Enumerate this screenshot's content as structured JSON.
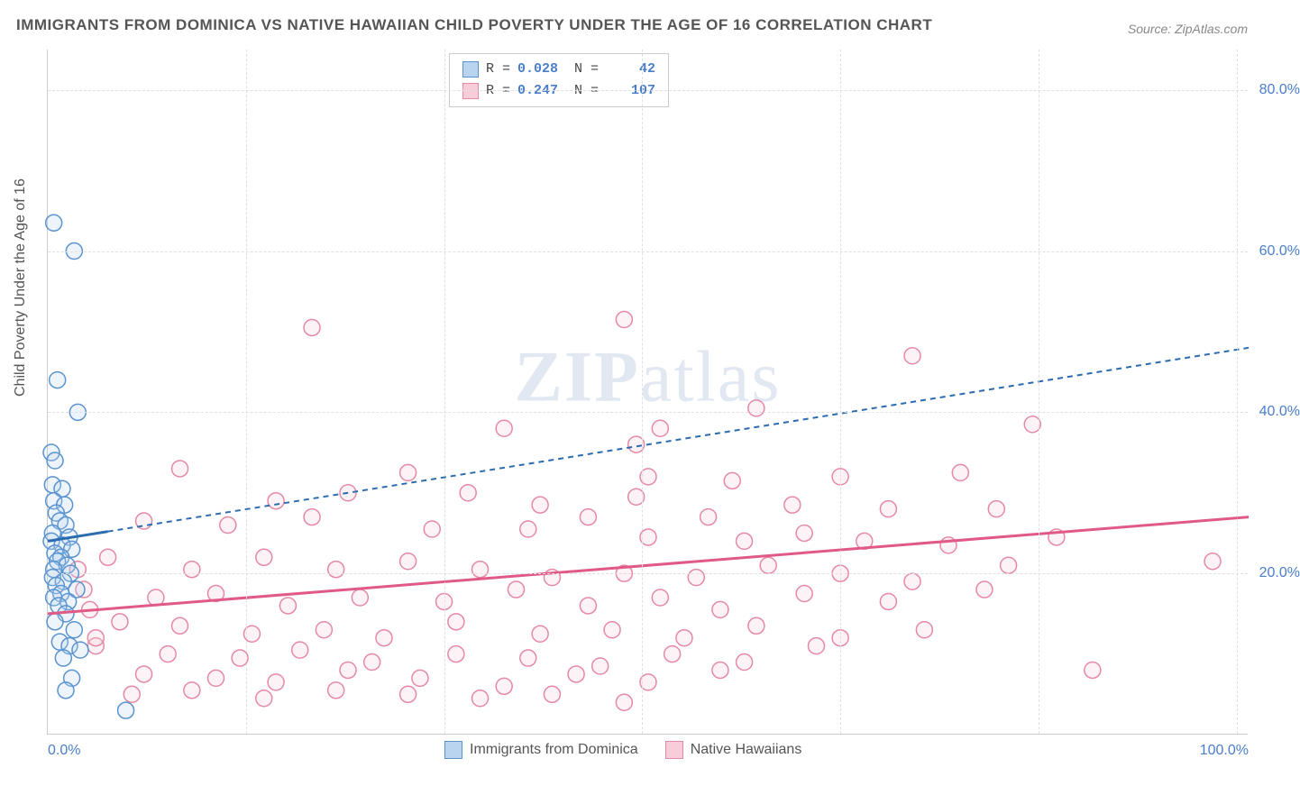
{
  "title": "IMMIGRANTS FROM DOMINICA VS NATIVE HAWAIIAN CHILD POVERTY UNDER THE AGE OF 16 CORRELATION CHART",
  "source_label": "Source: ",
  "source_link": "ZipAtlas.com",
  "ylabel": "Child Poverty Under the Age of 16",
  "watermark_a": "ZIP",
  "watermark_b": "atlas",
  "chart": {
    "type": "scatter",
    "background_color": "#ffffff",
    "grid_color": "#e0e0e0",
    "axis_color": "#cccccc",
    "tick_color": "#4a7ec9",
    "label_color": "#555555",
    "label_fontsize": 16,
    "title_fontsize": 17,
    "xlim": [
      0,
      100
    ],
    "ylim": [
      0,
      85
    ],
    "xticks": [
      0,
      100
    ],
    "xtick_labels": [
      "0.0%",
      "100.0%"
    ],
    "xgrid_positions": [
      16.5,
      33,
      49.5,
      66,
      82.5,
      99
    ],
    "yticks": [
      20,
      40,
      60,
      80
    ],
    "ytick_labels": [
      "20.0%",
      "40.0%",
      "60.0%",
      "80.0%"
    ],
    "marker_radius": 9,
    "marker_stroke_width": 1.5,
    "marker_fill_opacity": 0.25
  },
  "legend_top": {
    "rows": [
      {
        "swatch_fill": "#b9d4ef",
        "swatch_stroke": "#5a93d0",
        "r_label": "R =",
        "r_value": "0.028",
        "n_label": "N =",
        "n_value": "42"
      },
      {
        "swatch_fill": "#f6cdd8",
        "swatch_stroke": "#e589a5",
        "r_label": "R =",
        "r_value": "0.247",
        "n_label": "N =",
        "n_value": "107"
      }
    ]
  },
  "legend_bottom": {
    "items": [
      {
        "swatch_fill": "#b9d4ef",
        "swatch_stroke": "#5a93d0",
        "label": "Immigrants from Dominica"
      },
      {
        "swatch_fill": "#f6cdd8",
        "swatch_stroke": "#e589a5",
        "label": "Native Hawaiians"
      }
    ]
  },
  "series": [
    {
      "name": "Immigrants from Dominica",
      "color_stroke": "#5a93d0",
      "color_fill": "#b9d4ef",
      "trend": {
        "x1": 0,
        "y1": 24,
        "x2": 5,
        "y2": 25.2,
        "color": "#2b6cb0",
        "width": 3,
        "dash": "none"
      },
      "trend_ext": {
        "x1": 5,
        "y1": 25.2,
        "x2": 100,
        "y2": 48,
        "color": "#2b6cb0",
        "width": 2,
        "dash": "6,5"
      },
      "points": [
        [
          0.5,
          63.5
        ],
        [
          2.2,
          60
        ],
        [
          0.8,
          44
        ],
        [
          2.5,
          40
        ],
        [
          0.3,
          35
        ],
        [
          0.6,
          34
        ],
        [
          0.4,
          31
        ],
        [
          1.2,
          30.5
        ],
        [
          0.5,
          29
        ],
        [
          1.4,
          28.5
        ],
        [
          0.7,
          27.5
        ],
        [
          1.0,
          26.5
        ],
        [
          1.5,
          26
        ],
        [
          0.4,
          25
        ],
        [
          1.8,
          24.5
        ],
        [
          0.3,
          24
        ],
        [
          1.2,
          23.5
        ],
        [
          2.0,
          23
        ],
        [
          0.6,
          22.5
        ],
        [
          1.1,
          22
        ],
        [
          0.8,
          21.5
        ],
        [
          1.6,
          21
        ],
        [
          0.5,
          20.5
        ],
        [
          1.9,
          20
        ],
        [
          0.4,
          19.5
        ],
        [
          1.3,
          19
        ],
        [
          0.7,
          18.5
        ],
        [
          2.4,
          18
        ],
        [
          1.1,
          17.5
        ],
        [
          0.5,
          17
        ],
        [
          1.7,
          16.5
        ],
        [
          0.9,
          16
        ],
        [
          1.5,
          15
        ],
        [
          0.6,
          14
        ],
        [
          2.2,
          13
        ],
        [
          1.0,
          11.5
        ],
        [
          1.8,
          11
        ],
        [
          2.7,
          10.5
        ],
        [
          1.3,
          9.5
        ],
        [
          2.0,
          7.0
        ],
        [
          1.5,
          5.5
        ],
        [
          6.5,
          3.0
        ]
      ]
    },
    {
      "name": "Native Hawaiians",
      "color_stroke": "#e589a5",
      "color_fill": "#f6cdd8",
      "trend": {
        "x1": 0,
        "y1": 15,
        "x2": 100,
        "y2": 27,
        "color": "#e05a85",
        "width": 3,
        "dash": "none"
      },
      "trend_ext": null,
      "points": [
        [
          22,
          50.5
        ],
        [
          48,
          51.5
        ],
        [
          72,
          47
        ],
        [
          38,
          38
        ],
        [
          51,
          38
        ],
        [
          59,
          40.5
        ],
        [
          82,
          38.5
        ],
        [
          11,
          33
        ],
        [
          30,
          32.5
        ],
        [
          49,
          36
        ],
        [
          50,
          32
        ],
        [
          57,
          31.5
        ],
        [
          66,
          32
        ],
        [
          76,
          32.5
        ],
        [
          19,
          29
        ],
        [
          25,
          30
        ],
        [
          35,
          30
        ],
        [
          41,
          28.5
        ],
        [
          49,
          29.5
        ],
        [
          55,
          27
        ],
        [
          62,
          28.5
        ],
        [
          70,
          28
        ],
        [
          79,
          28
        ],
        [
          8,
          26.5
        ],
        [
          15,
          26
        ],
        [
          22,
          27
        ],
        [
          32,
          25.5
        ],
        [
          40,
          25.5
        ],
        [
          45,
          27
        ],
        [
          50,
          24.5
        ],
        [
          58,
          24
        ],
        [
          63,
          25
        ],
        [
          68,
          24
        ],
        [
          75,
          23.5
        ],
        [
          84,
          24.5
        ],
        [
          5,
          22
        ],
        [
          12,
          20.5
        ],
        [
          18,
          22
        ],
        [
          24,
          20.5
        ],
        [
          30,
          21.5
        ],
        [
          36,
          20.5
        ],
        [
          42,
          19.5
        ],
        [
          48,
          20
        ],
        [
          54,
          19.5
        ],
        [
          60,
          21
        ],
        [
          66,
          20
        ],
        [
          72,
          19
        ],
        [
          80,
          21
        ],
        [
          97,
          21.5
        ],
        [
          3,
          18
        ],
        [
          9,
          17
        ],
        [
          14,
          17.5
        ],
        [
          20,
          16
        ],
        [
          26,
          17
        ],
        [
          33,
          16.5
        ],
        [
          39,
          18
        ],
        [
          45,
          16
        ],
        [
          51,
          17
        ],
        [
          56,
          15.5
        ],
        [
          63,
          17.5
        ],
        [
          70,
          16.5
        ],
        [
          78,
          18
        ],
        [
          6,
          14
        ],
        [
          11,
          13.5
        ],
        [
          17,
          12.5
        ],
        [
          23,
          13
        ],
        [
          28,
          12
        ],
        [
          34,
          14
        ],
        [
          41,
          12.5
        ],
        [
          47,
          13
        ],
        [
          53,
          12
        ],
        [
          59,
          13.5
        ],
        [
          66,
          12
        ],
        [
          73,
          13
        ],
        [
          4,
          11
        ],
        [
          10,
          10
        ],
        [
          16,
          9.5
        ],
        [
          21,
          10.5
        ],
        [
          27,
          9
        ],
        [
          34,
          10
        ],
        [
          40,
          9.5
        ],
        [
          46,
          8.5
        ],
        [
          52,
          10
        ],
        [
          58,
          9
        ],
        [
          64,
          11
        ],
        [
          8,
          7.5
        ],
        [
          14,
          7
        ],
        [
          19,
          6.5
        ],
        [
          25,
          8
        ],
        [
          31,
          7
        ],
        [
          38,
          6
        ],
        [
          44,
          7.5
        ],
        [
          50,
          6.5
        ],
        [
          56,
          8
        ],
        [
          7,
          5
        ],
        [
          12,
          5.5
        ],
        [
          18,
          4.5
        ],
        [
          24,
          5.5
        ],
        [
          30,
          5
        ],
        [
          36,
          4.5
        ],
        [
          42,
          5
        ],
        [
          48,
          4
        ],
        [
          87,
          8
        ],
        [
          2.5,
          20.5
        ],
        [
          3.5,
          15.5
        ],
        [
          4,
          12
        ]
      ]
    }
  ]
}
